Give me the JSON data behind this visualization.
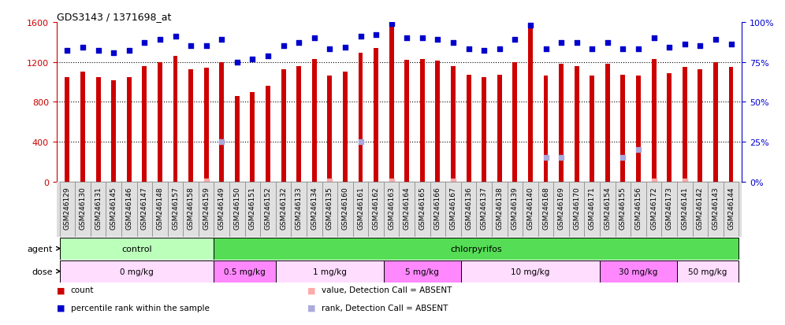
{
  "title": "GDS3143 / 1371698_at",
  "samples": [
    "GSM246129",
    "GSM246130",
    "GSM246131",
    "GSM246145",
    "GSM246146",
    "GSM246147",
    "GSM246148",
    "GSM246157",
    "GSM246158",
    "GSM246159",
    "GSM246149",
    "GSM246150",
    "GSM246151",
    "GSM246152",
    "GSM246132",
    "GSM246133",
    "GSM246134",
    "GSM246135",
    "GSM246160",
    "GSM246161",
    "GSM246162",
    "GSM246163",
    "GSM246164",
    "GSM246165",
    "GSM246166",
    "GSM246167",
    "GSM246136",
    "GSM246137",
    "GSM246138",
    "GSM246139",
    "GSM246140",
    "GSM246168",
    "GSM246169",
    "GSM246170",
    "GSM246171",
    "GSM246154",
    "GSM246155",
    "GSM246156",
    "GSM246172",
    "GSM246173",
    "GSM246141",
    "GSM246142",
    "GSM246143",
    "GSM246144"
  ],
  "bar_values": [
    1050,
    1100,
    1050,
    1020,
    1050,
    1160,
    1200,
    1260,
    1130,
    1140,
    1200,
    860,
    900,
    960,
    1130,
    1160,
    1230,
    1060,
    1100,
    1290,
    1340,
    1590,
    1220,
    1230,
    1210,
    1160,
    1070,
    1050,
    1070,
    1200,
    1565,
    1060,
    1180,
    1160,
    1060,
    1180,
    1070,
    1060,
    1230,
    1090,
    1150,
    1130,
    1200,
    1150
  ],
  "percentile_values": [
    82,
    84,
    82,
    81,
    82,
    87,
    89,
    91,
    85,
    85,
    89,
    75,
    77,
    79,
    85,
    87,
    90,
    83,
    84,
    91,
    92,
    99,
    90,
    90,
    89,
    87,
    83,
    82,
    83,
    89,
    98,
    83,
    87,
    87,
    83,
    87,
    83,
    83,
    90,
    84,
    86,
    85,
    89,
    86
  ],
  "absent_value_indices": [
    9,
    17,
    21,
    25,
    38,
    40
  ],
  "absent_value_vals": [
    5,
    5,
    5,
    5,
    5,
    5
  ],
  "absent_rank_indices": [
    10,
    19,
    31,
    32,
    36,
    37
  ],
  "absent_rank_vals": [
    25,
    25,
    15,
    15,
    15,
    20
  ],
  "bar_color": "#cc0000",
  "percentile_color": "#0000cc",
  "absent_value_color": "#ffaaaa",
  "absent_rank_color": "#aaaadd",
  "ylim_left": [
    0,
    1600
  ],
  "ylim_right": [
    0,
    100
  ],
  "yticks_left": [
    0,
    400,
    800,
    1200,
    1600
  ],
  "yticks_right": [
    0,
    25,
    50,
    75,
    100
  ],
  "grid_values": [
    400,
    800,
    1200
  ],
  "agent_groups": [
    {
      "label": "control",
      "start": 0,
      "end": 9,
      "color": "#bbffbb"
    },
    {
      "label": "chlorpyrifos",
      "start": 10,
      "end": 43,
      "color": "#55dd55"
    }
  ],
  "dose_groups": [
    {
      "label": "0 mg/kg",
      "start": 0,
      "end": 9,
      "color": "#ffddff"
    },
    {
      "label": "0.5 mg/kg",
      "start": 10,
      "end": 13,
      "color": "#ff99ff"
    },
    {
      "label": "1 mg/kg",
      "start": 14,
      "end": 20,
      "color": "#ffddff"
    },
    {
      "label": "5 mg/kg",
      "start": 21,
      "end": 25,
      "color": "#ff99ff"
    },
    {
      "label": "10 mg/kg",
      "start": 26,
      "end": 34,
      "color": "#ffddff"
    },
    {
      "label": "30 mg/kg",
      "start": 35,
      "end": 39,
      "color": "#ff99ff"
    },
    {
      "label": "50 mg/kg",
      "start": 40,
      "end": 43,
      "color": "#ffddff"
    }
  ],
  "legend_items": [
    {
      "label": "count",
      "color": "#cc0000"
    },
    {
      "label": "percentile rank within the sample",
      "color": "#0000cc"
    },
    {
      "label": "value, Detection Call = ABSENT",
      "color": "#ffaaaa"
    },
    {
      "label": "rank, Detection Call = ABSENT",
      "color": "#aaaadd"
    }
  ]
}
